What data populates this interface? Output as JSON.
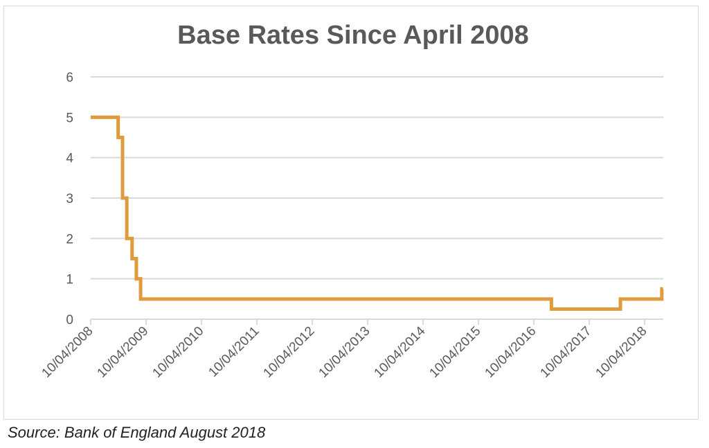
{
  "chart_data": {
    "type": "line",
    "step": true,
    "title": "Base Rates Since April 2008",
    "xlabel": "",
    "ylabel": "",
    "ylim": [
      0,
      6
    ],
    "yticks": [
      0,
      1,
      2,
      3,
      4,
      5,
      6
    ],
    "xticks": [
      "10/04/2008",
      "10/04/2009",
      "10/04/2010",
      "10/04/2011",
      "10/04/2012",
      "10/04/2013",
      "10/04/2014",
      "10/04/2015",
      "10/04/2016",
      "10/04/2017",
      "10/04/2018"
    ],
    "grid": true,
    "line_color": "#E09B3D",
    "series": [
      {
        "dates": [
          "2008-04-10",
          "2008-10-08",
          "2008-11-06",
          "2008-12-04",
          "2009-01-08",
          "2009-02-05",
          "2009-03-05",
          "2016-08-04",
          "2017-11-02",
          "2018-08-02"
        ],
        "values": [
          5.0,
          4.5,
          3.0,
          2.0,
          1.5,
          1.0,
          0.5,
          0.25,
          0.5,
          0.75
        ]
      }
    ],
    "x_end": "2018-08-10"
  },
  "source": "Source: Bank of England August 2018"
}
